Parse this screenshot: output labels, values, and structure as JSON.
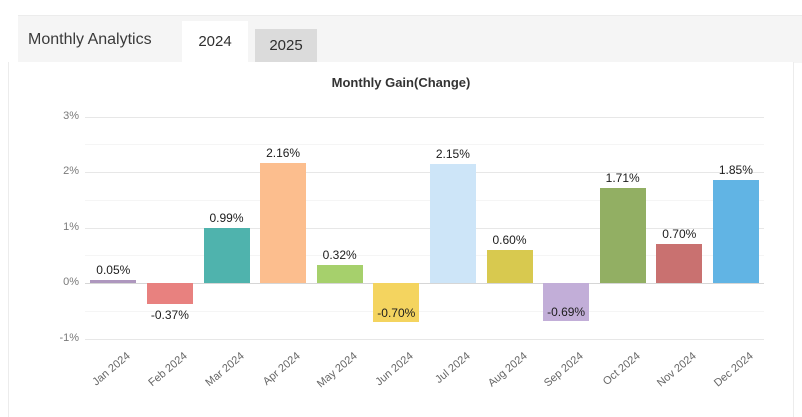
{
  "header": {
    "title": "Monthly Analytics",
    "tabs": [
      {
        "label": "2024",
        "active": true
      },
      {
        "label": "2025",
        "active": false
      }
    ]
  },
  "chart_data": {
    "type": "bar",
    "title": "Monthly Gain(Change)",
    "xlabel": "",
    "ylabel": "",
    "categories": [
      "Jan 2024",
      "Feb 2024",
      "Mar 2024",
      "Apr 2024",
      "May 2024",
      "Jun 2024",
      "Jul 2024",
      "Aug 2024",
      "Sep 2024",
      "Oct 2024",
      "Nov 2024",
      "Dec 2024"
    ],
    "values": [
      0.05,
      -0.37,
      0.99,
      2.16,
      0.32,
      -0.7,
      2.15,
      0.6,
      -0.69,
      1.71,
      0.7,
      1.85
    ],
    "value_labels": [
      "0.05%",
      "-0.37%",
      "0.99%",
      "2.16%",
      "0.32%",
      "-0.70%",
      "2.15%",
      "0.60%",
      "-0.69%",
      "1.71%",
      "0.70%",
      "1.85%"
    ],
    "bar_colors": [
      "#ae97be",
      "#e8817f",
      "#4fb3ad",
      "#fcbe8e",
      "#a6d06c",
      "#f4d45f",
      "#cde5f8",
      "#d8c94f",
      "#c2aed8",
      "#92af63",
      "#c97170",
      "#61b4e4"
    ],
    "y_ticks": [
      {
        "label": "3%",
        "value": 3
      },
      {
        "label": "2%",
        "value": 2
      },
      {
        "label": "1%",
        "value": 1
      },
      {
        "label": "0%",
        "value": 0
      },
      {
        "label": "-1%",
        "value": -1
      }
    ],
    "ylim": [
      -1.4,
      3.3
    ],
    "grid": true,
    "legend": false
  },
  "colors": {
    "header_bg": "#f5f5f5",
    "active_tab_bg": "#ffffff",
    "inactive_tab_bg": "#dbdbdb",
    "grid_major": "#e7e7e7",
    "grid_minor": "#f5f5f5",
    "zero_line": "#d6d6d6"
  }
}
